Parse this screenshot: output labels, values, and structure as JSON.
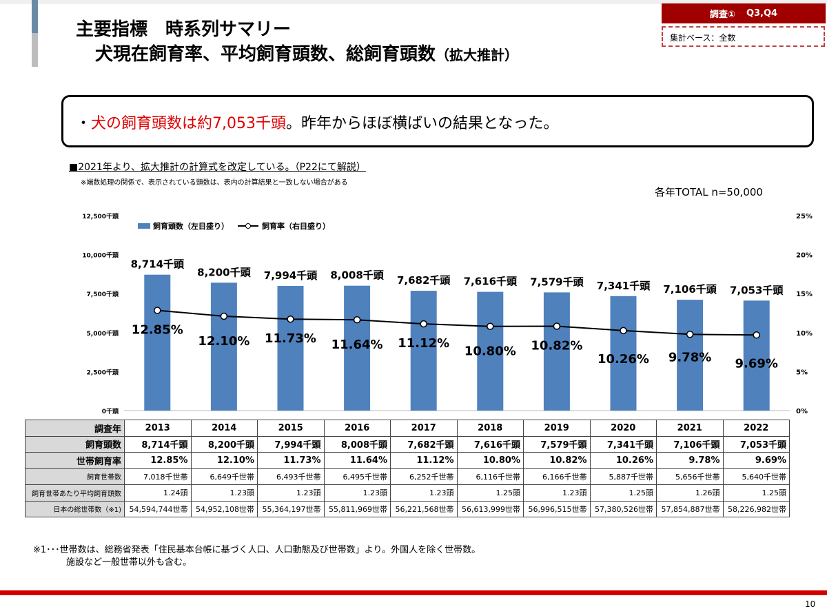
{
  "header": {
    "title_line1": "主要指標　時系列サマリー",
    "title_line2": "犬現在飼育率、平均飼育頭数、総飼育頭数",
    "title_suffix": "（拡大推計）",
    "badge_survey": "調査①",
    "badge_q": "Q3,Q4",
    "base": "集計ベース：全数"
  },
  "callout": {
    "bullet": "・",
    "highlight": "犬の飼育頭数は約7,053千頭",
    "rest": "。昨年からほぼ横ばいの結果となった。"
  },
  "notes": {
    "method": "■2021年より、拡大推計の計算式を改定している。（P22にて解説）",
    "rounding": "※端数処理の関係で、表示されている頭数は、表内の計算結果と一致しない場合がある",
    "total": "各年TOTAL n=50,000"
  },
  "chart_data": {
    "type": "bar+line",
    "categories": [
      "2013",
      "2014",
      "2015",
      "2016",
      "2017",
      "2018",
      "2019",
      "2020",
      "2021",
      "2022"
    ],
    "series": [
      {
        "name": "飼育頭数（左目盛り）",
        "type": "bar",
        "axis": "left",
        "values": [
          8714,
          8200,
          7994,
          8008,
          7682,
          7616,
          7579,
          7341,
          7106,
          7053
        ],
        "labels": [
          "8,714千頭",
          "8,200千頭",
          "7,994千頭",
          "8,008千頭",
          "7,682千頭",
          "7,616千頭",
          "7,579千頭",
          "7,341千頭",
          "7,106千頭",
          "7,053千頭"
        ],
        "color": "#4f81bd"
      },
      {
        "name": "飼育率（右目盛り）",
        "type": "line",
        "axis": "right",
        "values": [
          12.85,
          12.1,
          11.73,
          11.64,
          11.12,
          10.8,
          10.82,
          10.26,
          9.78,
          9.69
        ],
        "labels": [
          "12.85%",
          "12.10%",
          "11.73%",
          "11.64%",
          "11.12%",
          "10.80%",
          "10.82%",
          "10.26%",
          "9.78%",
          "9.69%"
        ],
        "color": "#000000"
      }
    ],
    "ylim_left": [
      0,
      12500
    ],
    "yticks_left": [
      "0千頭",
      "2,500千頭",
      "5,000千頭",
      "7,500千頭",
      "10,000千頭",
      "12,500千頭"
    ],
    "ylim_right": [
      0,
      25
    ],
    "yticks_right": [
      "0%",
      "5%",
      "10%",
      "15%",
      "20%",
      "25%"
    ],
    "legend": "top-left",
    "grid": false
  },
  "table": {
    "header": [
      "調査年",
      "2013",
      "2014",
      "2015",
      "2016",
      "2017",
      "2018",
      "2019",
      "2020",
      "2021",
      "2022"
    ],
    "rows": [
      {
        "label": "飼育頭数",
        "cells": [
          "8,714千頭",
          "8,200千頭",
          "7,994千頭",
          "8,008千頭",
          "7,682千頭",
          "7,616千頭",
          "7,579千頭",
          "7,341千頭",
          "7,106千頭",
          "7,053千頭"
        ]
      },
      {
        "label": "世帯飼育率",
        "cells": [
          "12.85%",
          "12.10%",
          "11.73%",
          "11.64%",
          "11.12%",
          "10.80%",
          "10.82%",
          "10.26%",
          "9.78%",
          "9.69%"
        ]
      },
      {
        "label": "飼育世帯数",
        "cells": [
          "7,018千世帯",
          "6,649千世帯",
          "6,493千世帯",
          "6,495千世帯",
          "6,252千世帯",
          "6,116千世帯",
          "6,166千世帯",
          "5,887千世帯",
          "5,656千世帯",
          "5,640千世帯"
        ]
      },
      {
        "label": "飼育世帯あたり平均飼育頭数",
        "cells": [
          "1.24頭",
          "1.23頭",
          "1.23頭",
          "1.23頭",
          "1.23頭",
          "1.25頭",
          "1.23頭",
          "1.25頭",
          "1.26頭",
          "1.25頭"
        ]
      },
      {
        "label": "日本の総世帯数（※1)",
        "cells": [
          "54,594,744世帯",
          "54,952,108世帯",
          "55,364,197世帯",
          "55,811,969世帯",
          "56,221,568世帯",
          "56,613,999世帯",
          "56,996,515世帯",
          "57,380,526世帯",
          "57,854,887世帯",
          "58,226,982世帯"
        ]
      }
    ]
  },
  "footnote": {
    "line1": "※1･･･世帯数は、総務省発表「住民基本台帳に基づく人口、人口動態及び世帯数」より。外国人を除く世帯数。",
    "line2": "施設など一般世帯以外も含む。"
  },
  "page_number": "10"
}
